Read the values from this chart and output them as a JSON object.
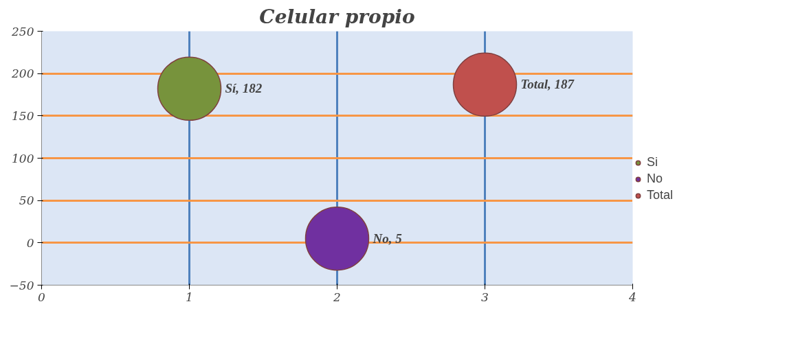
{
  "chart_data": {
    "type": "bubble",
    "title": "Celular propio",
    "xlim": [
      0,
      4
    ],
    "xticks": [
      0,
      1,
      2,
      3,
      4
    ],
    "ylim": [
      -50,
      250
    ],
    "yticks": [
      -50,
      0,
      50,
      100,
      150,
      200,
      250
    ],
    "grid": true,
    "legend": "right",
    "series": [
      {
        "name": "Si",
        "color": "#77933c",
        "x": [
          1
        ],
        "values": [
          182
        ],
        "sizes": [
          1
        ],
        "value_labels": [
          "Sí, 182"
        ]
      },
      {
        "name": "No",
        "color": "#7030a0",
        "x": [
          2
        ],
        "values": [
          5
        ],
        "sizes": [
          1
        ],
        "value_labels": [
          "No, 5"
        ]
      },
      {
        "name": "Total",
        "color": "#c0504d",
        "x": [
          3
        ],
        "values": [
          187
        ],
        "sizes": [
          1
        ],
        "value_labels": [
          "Total, 187"
        ]
      }
    ]
  }
}
